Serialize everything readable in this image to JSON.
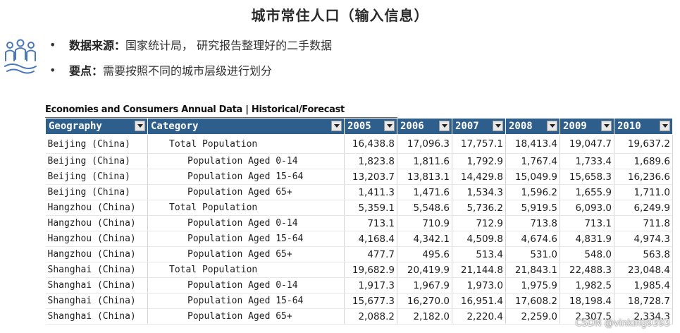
{
  "title": "城市常住人口（输入信息）",
  "icon": "people-group-icon",
  "bullets": [
    {
      "key": "数据来源：",
      "text": "国家统计局， 研究报告整理好的二手数据"
    },
    {
      "key": "要点：",
      "text": "需要按照不同的城市层级进行划分"
    }
  ],
  "table": {
    "caption": "Economies and Consumers Annual Data | Historical/Forecast",
    "headers": [
      "Geography",
      "Category",
      "2005",
      "2006",
      "2007",
      "2008",
      "2009",
      "2010"
    ],
    "rows": [
      {
        "geo": "Beijing (China)",
        "cat": "Total Population",
        "level": "total",
        "vals": [
          "16,438.8",
          "17,096.3",
          "17,757.1",
          "18,413.4",
          "19,047.7",
          "19,637.2"
        ]
      },
      {
        "geo": "Beijing (China)",
        "cat": "Population Aged 0-14",
        "level": "sub",
        "vals": [
          "1,823.8",
          "1,811.6",
          "1,792.9",
          "1,767.4",
          "1,733.4",
          "1,689.6"
        ]
      },
      {
        "geo": "Beijing (China)",
        "cat": "Population Aged 15-64",
        "level": "sub",
        "vals": [
          "13,203.7",
          "13,813.1",
          "14,429.8",
          "15,049.9",
          "15,658.3",
          "16,236.6"
        ]
      },
      {
        "geo": "Beijing (China)",
        "cat": "Population Aged 65+",
        "level": "sub",
        "vals": [
          "1,411.3",
          "1,471.6",
          "1,534.3",
          "1,596.2",
          "1,655.9",
          "1,711.0"
        ]
      },
      {
        "geo": "Hangzhou (China)",
        "cat": "Total Population",
        "level": "total",
        "vals": [
          "5,359.1",
          "5,548.6",
          "5,736.2",
          "5,919.5",
          "6,093.0",
          "6,249.9"
        ]
      },
      {
        "geo": "Hangzhou (China)",
        "cat": "Population Aged 0-14",
        "level": "sub",
        "vals": [
          "713.1",
          "710.9",
          "712.9",
          "713.8",
          "713.1",
          "711.8"
        ]
      },
      {
        "geo": "Hangzhou (China)",
        "cat": "Population Aged 15-64",
        "level": "sub",
        "vals": [
          "4,168.4",
          "4,342.1",
          "4,509.8",
          "4,674.6",
          "4,831.9",
          "4,974.3"
        ]
      },
      {
        "geo": "Hangzhou (China)",
        "cat": "Population Aged 65+",
        "level": "sub",
        "vals": [
          "477.7",
          "495.6",
          "513.4",
          "531.0",
          "548.0",
          "563.8"
        ]
      },
      {
        "geo": "Shanghai (China)",
        "cat": "Total Population",
        "level": "total",
        "vals": [
          "19,682.9",
          "20,419.9",
          "21,144.8",
          "21,843.1",
          "22,488.3",
          "23,048.4"
        ]
      },
      {
        "geo": "Shanghai (China)",
        "cat": "Population Aged 0-14",
        "level": "sub",
        "vals": [
          "1,917.3",
          "1,967.9",
          "1,973.0",
          "1,975.9",
          "1,982.5",
          "1,985.4"
        ]
      },
      {
        "geo": "Shanghai (China)",
        "cat": "Population Aged 15-64",
        "level": "sub",
        "vals": [
          "15,677.3",
          "16,270.0",
          "16,951.4",
          "17,608.2",
          "18,198.4",
          "18,728.7"
        ]
      },
      {
        "geo": "Shanghai (China)",
        "cat": "Population Aged 65+",
        "level": "sub",
        "vals": [
          "2,088.2",
          "2,182.0",
          "2,220.4",
          "2,259.0",
          "2,307.5",
          "2,334.3"
        ]
      }
    ]
  },
  "watermark": "CSDN @vinking9393"
}
